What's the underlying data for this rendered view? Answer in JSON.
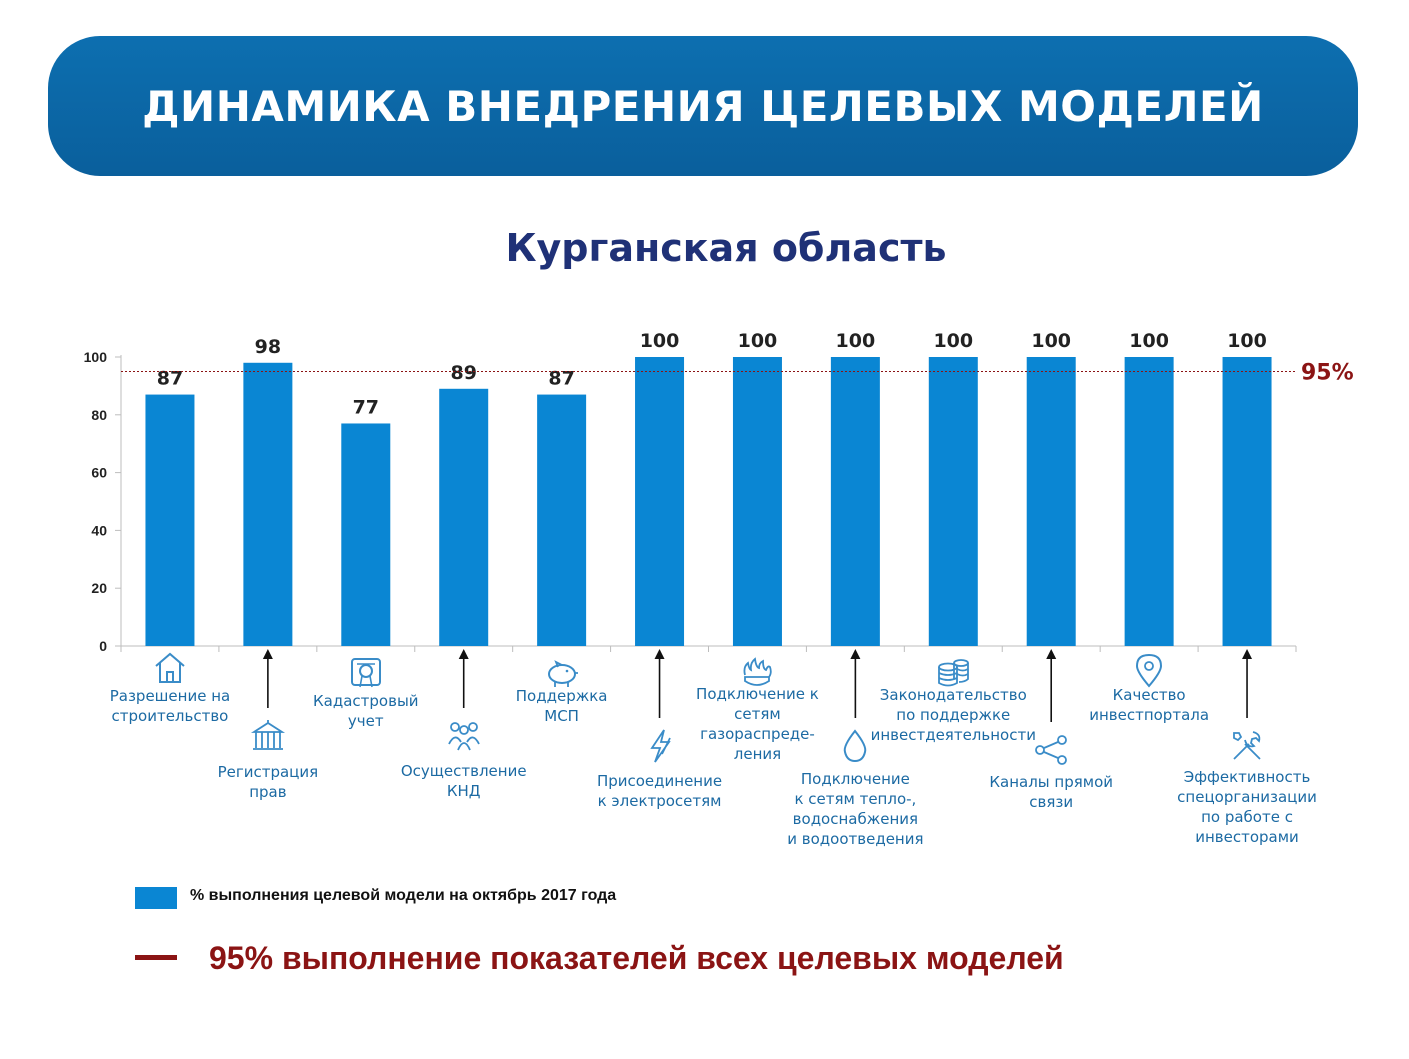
{
  "header": {
    "title": "ДИНАМИКА ВНЕДРЕНИЯ ЦЕЛЕВЫХ МОДЕЛЕЙ",
    "subtitle": "Курганская область"
  },
  "chart_data": {
    "type": "bar",
    "title": "Курганская область",
    "xlabel": "",
    "ylabel": "",
    "ylim": [
      0,
      100
    ],
    "yticks": [
      0,
      20,
      40,
      60,
      80,
      100
    ],
    "grid": false,
    "categories": [
      "Разрешение на\nстроительство",
      "Регистрация\nправ",
      "Кадастровый\nучет",
      "Осуществление\nКНД",
      "Поддержка\nМСП",
      "Присоединение\nк электросетям",
      "Подключение к\nсетям\nгазораспреде-\nления",
      "Подключение\nк сетям тепло-,\nводоснабжения\nи водоотведения",
      "Законодательство\nпо поддержке\nинвестдеятельности",
      "Каналы прямой\nсвязи",
      "Качество\nинвестпортала",
      "Эффективность\nспецорганизации\nпо работе с\nинвесторами"
    ],
    "icons": [
      "house-icon",
      "government-building-icon",
      "certificate-icon",
      "people-group-icon",
      "piggy-bank-icon",
      "lightning-icon",
      "gas-flame-icon",
      "water-drop-icon",
      "coins-stack-icon",
      "share-network-icon",
      "location-pin-icon",
      "tools-icon"
    ],
    "series": [
      {
        "name": "% выполнения целевой модели на октябрь 2017 года",
        "values": [
          87,
          98,
          77,
          89,
          87,
          100,
          100,
          100,
          100,
          100,
          100,
          100
        ],
        "color": "#0a86d3"
      }
    ],
    "reference_line": {
      "value": 95,
      "label": "95%",
      "color": "#8b1414",
      "legend_label": "95% выполнение показателей всех целевых моделей"
    },
    "legend_position": "bottom-left"
  }
}
